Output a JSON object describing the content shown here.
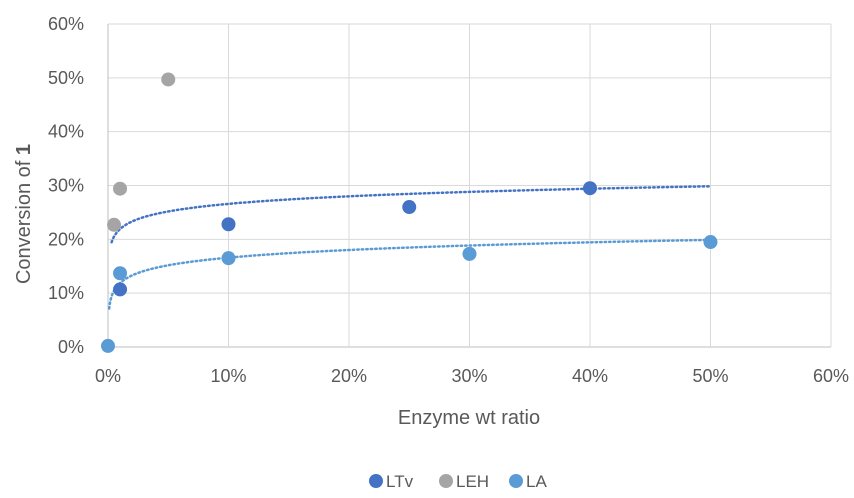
{
  "chart_data": {
    "type": "scatter",
    "title": "",
    "xlabel": "Enzyme wt ratio",
    "ylabel_prefix": "Conversion of ",
    "ylabel_bold": "1",
    "xlim": [
      0,
      0.6
    ],
    "ylim": [
      0,
      0.6
    ],
    "x_ticks": [
      "0%",
      "10%",
      "20%",
      "30%",
      "40%",
      "50%",
      "60%"
    ],
    "y_ticks": [
      "0%",
      "10%",
      "20%",
      "30%",
      "40%",
      "50%",
      "60%"
    ],
    "grid": true,
    "legend_position": "bottom",
    "series": [
      {
        "name": "LTv",
        "color": "#4472C4",
        "points": [
          [
            0.01,
            0.107
          ],
          [
            0.1,
            0.228
          ],
          [
            0.25,
            0.26
          ],
          [
            0.4,
            0.295
          ]
        ],
        "trendline": {
          "type": "logarithmic",
          "a": 0.3126,
          "b": 0.0203,
          "x_range": [
            0.003,
            0.5
          ]
        }
      },
      {
        "name": "LEH",
        "color": "#A5A5A5",
        "points": [
          [
            0.005,
            0.227
          ],
          [
            0.01,
            0.294
          ],
          [
            0.05,
            0.497
          ]
        ]
      },
      {
        "name": "LA",
        "color": "#5B9BD5",
        "points": [
          [
            0.0,
            0.002
          ],
          [
            0.01,
            0.137
          ],
          [
            0.1,
            0.165
          ],
          [
            0.3,
            0.173
          ],
          [
            0.5,
            0.195
          ]
        ],
        "trendline": {
          "type": "logarithmic",
          "a": 0.2132,
          "b": 0.0205,
          "x_range": [
            0.001,
            0.5
          ]
        }
      }
    ]
  }
}
